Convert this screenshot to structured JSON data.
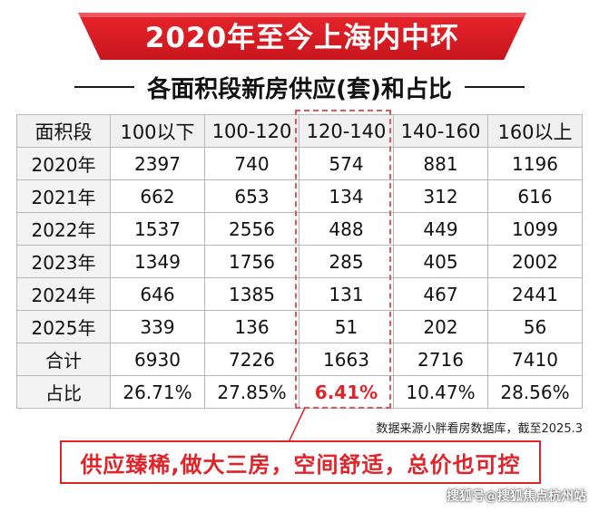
{
  "title": "2020年至今上海内中环",
  "subtitle": "各面积段新房供应(套)和占比",
  "table": {
    "headers": [
      "面积段",
      "100以下",
      "100-120",
      "120-140",
      "140-160",
      "160以上"
    ],
    "rows": [
      [
        "2020年",
        "2397",
        "740",
        "574",
        "881",
        "1196"
      ],
      [
        "2021年",
        "662",
        "653",
        "134",
        "312",
        "616"
      ],
      [
        "2022年",
        "1537",
        "2556",
        "488",
        "449",
        "1099"
      ],
      [
        "2023年",
        "1349",
        "1756",
        "285",
        "405",
        "2002"
      ],
      [
        "2024年",
        "646",
        "1385",
        "131",
        "467",
        "2441"
      ],
      [
        "2025年",
        "339",
        "136",
        "51",
        "202",
        "56"
      ],
      [
        "合计",
        "6930",
        "7226",
        "1663",
        "2716",
        "7410"
      ],
      [
        "占比",
        "26.71%",
        "27.85%",
        "6.41%",
        "10.47%",
        "28.56%"
      ]
    ]
  },
  "source_note": "数据来源小胖看房数据库，截至2025.3",
  "callout": "供应臻稀,做大三房，空间舒适，总价也可控",
  "watermark": "搜狐号@搜狐焦点杭州站",
  "colors": {
    "accent_red": "#e0242a",
    "banner_red": "#d81c23"
  }
}
